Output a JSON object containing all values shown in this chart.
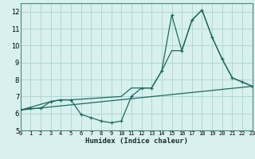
{
  "xlabel": "Humidex (Indice chaleur)",
  "bg_color": "#d8f0ee",
  "grid_color": "#b0d8d4",
  "line_color": "#1a6b60",
  "xlim": [
    0,
    23
  ],
  "ylim": [
    5,
    12.5
  ],
  "xticks": [
    0,
    1,
    2,
    3,
    4,
    5,
    6,
    7,
    8,
    9,
    10,
    11,
    12,
    13,
    14,
    15,
    16,
    17,
    18,
    19,
    20,
    21,
    22,
    23
  ],
  "yticks": [
    5,
    6,
    7,
    8,
    9,
    10,
    11,
    12
  ],
  "series1_x": [
    0,
    1,
    2,
    3,
    4,
    5,
    6,
    7,
    8,
    9,
    10,
    11,
    12,
    13,
    14,
    15,
    16,
    17,
    18,
    19,
    20,
    21,
    22,
    23
  ],
  "series1_y": [
    6.2,
    6.3,
    6.3,
    6.7,
    6.8,
    6.8,
    5.95,
    5.75,
    5.55,
    5.45,
    5.55,
    7.0,
    7.5,
    7.5,
    8.5,
    11.8,
    9.7,
    11.5,
    12.1,
    10.5,
    9.2,
    8.1,
    7.85,
    7.6
  ],
  "series2_x": [
    0,
    3,
    4,
    5,
    10,
    11,
    12,
    13,
    14,
    15,
    16,
    17,
    18,
    19,
    20,
    21,
    22,
    23
  ],
  "series2_y": [
    6.2,
    6.7,
    6.8,
    6.8,
    7.0,
    7.5,
    7.5,
    7.5,
    8.5,
    9.7,
    9.7,
    11.5,
    12.1,
    10.5,
    9.2,
    8.1,
    7.85,
    7.6
  ],
  "series3_x": [
    0,
    23
  ],
  "series3_y": [
    6.2,
    7.6
  ]
}
